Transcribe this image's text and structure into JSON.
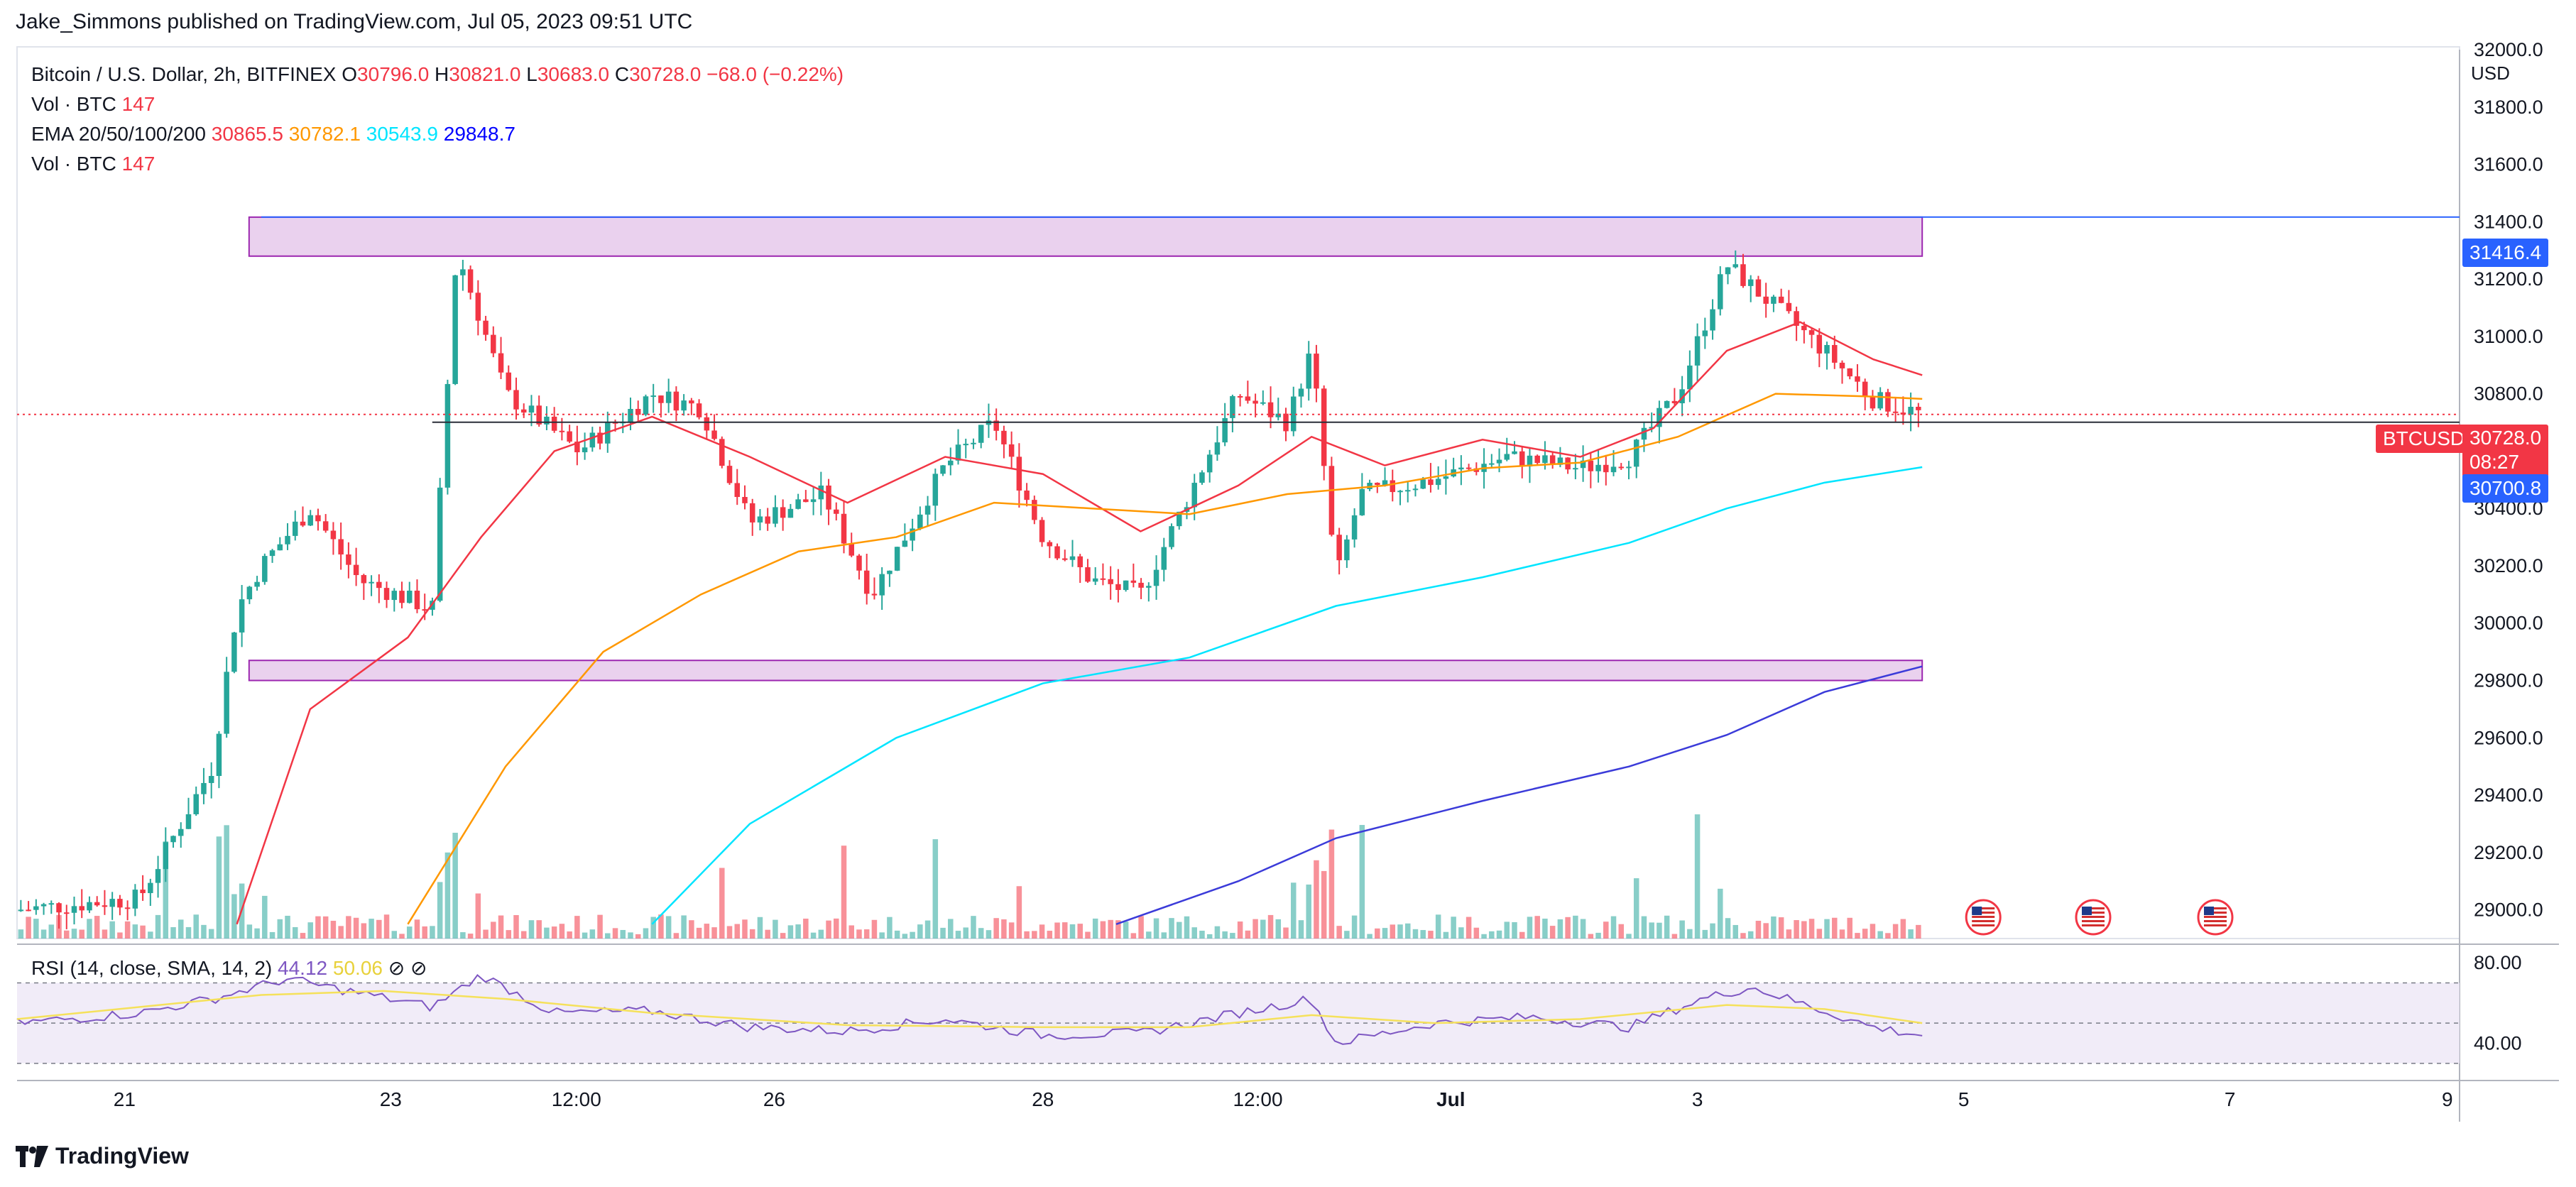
{
  "header": {
    "publisher_line": "Jake_Simmons published on TradingView.com, Jul 05, 2023 09:51 UTC"
  },
  "legend": {
    "symbol": "Bitcoin / U.S. Dollar, 2h, BITFINEX",
    "o_label": "O",
    "o_value": "30796.0",
    "h_label": "H",
    "h_value": "30821.0",
    "l_label": "L",
    "l_value": "30683.0",
    "c_label": "C",
    "c_value": "30728.0",
    "change": "−68.0 (−0.22%)",
    "vol1_label": "Vol · BTC",
    "vol1_value": "147",
    "ema_label": "EMA 20/50/100/200",
    "ema20": "30865.5",
    "ema50": "30782.1",
    "ema100": "30543.9",
    "ema200": "29848.7",
    "vol2_label": "Vol · BTC",
    "vol2_value": "147"
  },
  "rsi_legend": {
    "label": "RSI (14, close, SMA, 14, 2)",
    "rsi_value": "44.12",
    "sma_value": "50.06"
  },
  "axis": {
    "currency": "USD",
    "price_ticks": [
      "32000.0",
      "31800.0",
      "31600.0",
      "31400.0",
      "31200.0",
      "31000.0",
      "30800.0",
      "30600.0",
      "30400.0",
      "30200.0",
      "30000.0",
      "29800.0",
      "29600.0",
      "29400.0",
      "29200.0",
      "29000.0"
    ],
    "rsi_ticks": [
      "80.00",
      "40.00"
    ],
    "time_ticks": [
      "21",
      "23",
      "12:00",
      "26",
      "28",
      "12:00",
      "Jul",
      "3",
      "5",
      "7",
      "9"
    ]
  },
  "price_tags": {
    "resistance": "31416.4",
    "symbol_tag": "BTCUSD",
    "last_price": "30728.0",
    "countdown": "08:27",
    "support_line": "30700.8"
  },
  "footer": {
    "brand": "TradingView"
  },
  "colors": {
    "up": "#26a69a",
    "down": "#f23645",
    "ema20": "#f23645",
    "ema50": "#ff9800",
    "ema100": "#00e5ff",
    "ema200": "#3b3bd9",
    "zone_fill": "#e1bee7",
    "zone_stroke": "#9c27b0",
    "rsi_line": "#7e57c2",
    "rsi_sma": "#f5e15b",
    "rsi_band": "#ede7f6"
  },
  "chart_data": {
    "type": "candlestick",
    "timeframe": "2h",
    "ylim": [
      28900,
      32000
    ],
    "x_ticks": [
      "21",
      "23",
      "12:00",
      "26",
      "28",
      "12:00",
      "Jul",
      "3",
      "5",
      "7",
      "9"
    ],
    "zones": [
      {
        "low": 31280,
        "high": 31416
      },
      {
        "low": 29800,
        "high": 29870
      }
    ],
    "horizontal_lines": [
      31416.4,
      30700.8
    ],
    "price_path": [
      {
        "x": 0.0,
        "price": 29000
      },
      {
        "x": 0.05,
        "price": 29040
      },
      {
        "x": 0.08,
        "price": 29500
      },
      {
        "x": 0.09,
        "price": 30050
      },
      {
        "x": 0.1,
        "price": 30200
      },
      {
        "x": 0.12,
        "price": 30400
      },
      {
        "x": 0.14,
        "price": 30150
      },
      {
        "x": 0.17,
        "price": 30050
      },
      {
        "x": 0.18,
        "price": 31300
      },
      {
        "x": 0.2,
        "price": 30800
      },
      {
        "x": 0.23,
        "price": 30600
      },
      {
        "x": 0.26,
        "price": 30800
      },
      {
        "x": 0.28,
        "price": 30750
      },
      {
        "x": 0.3,
        "price": 30350
      },
      {
        "x": 0.33,
        "price": 30450
      },
      {
        "x": 0.35,
        "price": 30100
      },
      {
        "x": 0.38,
        "price": 30550
      },
      {
        "x": 0.4,
        "price": 30700
      },
      {
        "x": 0.42,
        "price": 30300
      },
      {
        "x": 0.44,
        "price": 30150
      },
      {
        "x": 0.46,
        "price": 30100
      },
      {
        "x": 0.48,
        "price": 30450
      },
      {
        "x": 0.5,
        "price": 30800
      },
      {
        "x": 0.52,
        "price": 30700
      },
      {
        "x": 0.53,
        "price": 30950
      },
      {
        "x": 0.54,
        "price": 30150
      },
      {
        "x": 0.55,
        "price": 30450
      },
      {
        "x": 0.58,
        "price": 30500
      },
      {
        "x": 0.61,
        "price": 30580
      },
      {
        "x": 0.64,
        "price": 30540
      },
      {
        "x": 0.66,
        "price": 30580
      },
      {
        "x": 0.68,
        "price": 30800
      },
      {
        "x": 0.7,
        "price": 31250
      },
      {
        "x": 0.72,
        "price": 31100
      },
      {
        "x": 0.74,
        "price": 30950
      },
      {
        "x": 0.76,
        "price": 30780
      },
      {
        "x": 0.78,
        "price": 30728
      }
    ],
    "rsi_path": [
      {
        "x": 0.0,
        "value": 50
      },
      {
        "x": 0.05,
        "value": 55
      },
      {
        "x": 0.08,
        "value": 62
      },
      {
        "x": 0.11,
        "value": 72
      },
      {
        "x": 0.14,
        "value": 65
      },
      {
        "x": 0.17,
        "value": 58
      },
      {
        "x": 0.19,
        "value": 74
      },
      {
        "x": 0.22,
        "value": 55
      },
      {
        "x": 0.26,
        "value": 56
      },
      {
        "x": 0.3,
        "value": 48
      },
      {
        "x": 0.34,
        "value": 46
      },
      {
        "x": 0.38,
        "value": 52
      },
      {
        "x": 0.42,
        "value": 44
      },
      {
        "x": 0.46,
        "value": 45
      },
      {
        "x": 0.5,
        "value": 55
      },
      {
        "x": 0.53,
        "value": 62
      },
      {
        "x": 0.54,
        "value": 40
      },
      {
        "x": 0.58,
        "value": 50
      },
      {
        "x": 0.62,
        "value": 53
      },
      {
        "x": 0.66,
        "value": 48
      },
      {
        "x": 0.69,
        "value": 62
      },
      {
        "x": 0.71,
        "value": 68
      },
      {
        "x": 0.74,
        "value": 56
      },
      {
        "x": 0.76,
        "value": 48
      },
      {
        "x": 0.78,
        "value": 44
      }
    ],
    "rsi_sma_path": [
      {
        "x": 0.0,
        "value": 52
      },
      {
        "x": 0.1,
        "value": 64
      },
      {
        "x": 0.15,
        "value": 66
      },
      {
        "x": 0.2,
        "value": 62
      },
      {
        "x": 0.26,
        "value": 55
      },
      {
        "x": 0.34,
        "value": 49
      },
      {
        "x": 0.42,
        "value": 48
      },
      {
        "x": 0.48,
        "value": 48
      },
      {
        "x": 0.53,
        "value": 54
      },
      {
        "x": 0.58,
        "value": 50
      },
      {
        "x": 0.64,
        "value": 52
      },
      {
        "x": 0.7,
        "value": 59
      },
      {
        "x": 0.74,
        "value": 57
      },
      {
        "x": 0.78,
        "value": 50
      }
    ],
    "ema20_path": [
      {
        "x": 0.09,
        "value": 28950
      },
      {
        "x": 0.12,
        "value": 29700
      },
      {
        "x": 0.16,
        "value": 29950
      },
      {
        "x": 0.19,
        "value": 30300
      },
      {
        "x": 0.22,
        "value": 30600
      },
      {
        "x": 0.26,
        "value": 30720
      },
      {
        "x": 0.3,
        "value": 30580
      },
      {
        "x": 0.34,
        "value": 30420
      },
      {
        "x": 0.38,
        "value": 30580
      },
      {
        "x": 0.42,
        "value": 30520
      },
      {
        "x": 0.46,
        "value": 30320
      },
      {
        "x": 0.5,
        "value": 30480
      },
      {
        "x": 0.53,
        "value": 30650
      },
      {
        "x": 0.56,
        "value": 30550
      },
      {
        "x": 0.6,
        "value": 30640
      },
      {
        "x": 0.64,
        "value": 30580
      },
      {
        "x": 0.67,
        "value": 30680
      },
      {
        "x": 0.7,
        "value": 30950
      },
      {
        "x": 0.73,
        "value": 31050
      },
      {
        "x": 0.76,
        "value": 30920
      },
      {
        "x": 0.78,
        "value": 30865
      }
    ],
    "ema50_path": [
      {
        "x": 0.16,
        "value": 28950
      },
      {
        "x": 0.2,
        "value": 29500
      },
      {
        "x": 0.24,
        "value": 29900
      },
      {
        "x": 0.28,
        "value": 30100
      },
      {
        "x": 0.32,
        "value": 30250
      },
      {
        "x": 0.36,
        "value": 30300
      },
      {
        "x": 0.4,
        "value": 30420
      },
      {
        "x": 0.44,
        "value": 30400
      },
      {
        "x": 0.48,
        "value": 30380
      },
      {
        "x": 0.52,
        "value": 30450
      },
      {
        "x": 0.56,
        "value": 30480
      },
      {
        "x": 0.6,
        "value": 30540
      },
      {
        "x": 0.64,
        "value": 30560
      },
      {
        "x": 0.68,
        "value": 30650
      },
      {
        "x": 0.72,
        "value": 30800
      },
      {
        "x": 0.76,
        "value": 30790
      },
      {
        "x": 0.78,
        "value": 30782
      }
    ],
    "ema100_path": [
      {
        "x": 0.26,
        "value": 28950
      },
      {
        "x": 0.3,
        "value": 29300
      },
      {
        "x": 0.36,
        "value": 29600
      },
      {
        "x": 0.42,
        "value": 29790
      },
      {
        "x": 0.48,
        "value": 29880
      },
      {
        "x": 0.54,
        "value": 30060
      },
      {
        "x": 0.6,
        "value": 30160
      },
      {
        "x": 0.66,
        "value": 30280
      },
      {
        "x": 0.7,
        "value": 30400
      },
      {
        "x": 0.74,
        "value": 30490
      },
      {
        "x": 0.78,
        "value": 30544
      }
    ],
    "ema200_path": [
      {
        "x": 0.45,
        "value": 28950
      },
      {
        "x": 0.5,
        "value": 29100
      },
      {
        "x": 0.54,
        "value": 29250
      },
      {
        "x": 0.6,
        "value": 29380
      },
      {
        "x": 0.66,
        "value": 29500
      },
      {
        "x": 0.7,
        "value": 29610
      },
      {
        "x": 0.74,
        "value": 29760
      },
      {
        "x": 0.78,
        "value": 29849
      }
    ]
  }
}
